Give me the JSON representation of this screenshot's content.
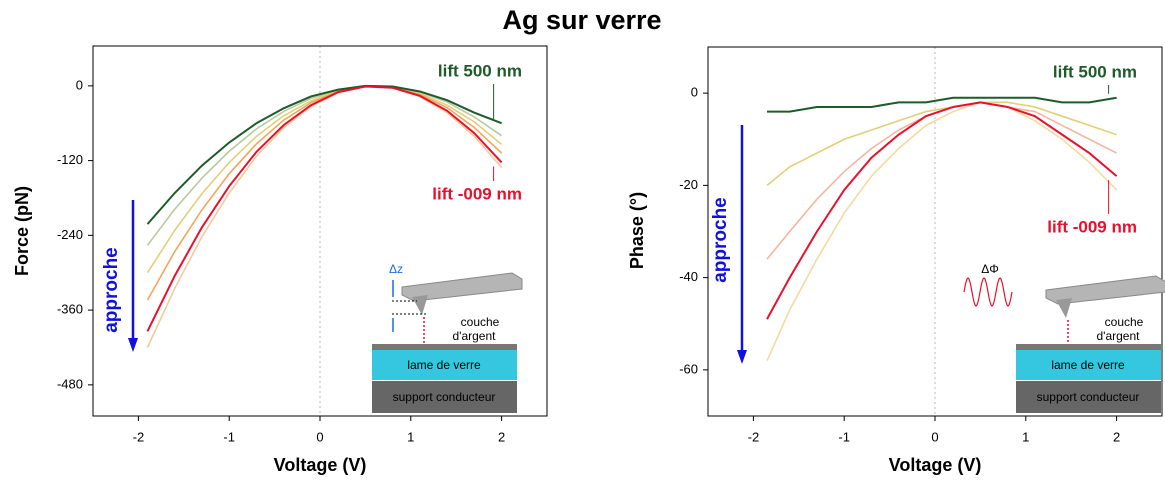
{
  "title": "Ag sur verre",
  "chart_data": [
    {
      "type": "line",
      "xlabel": "Voltage (V)",
      "ylabel": "Force (pN)",
      "xlim": [
        -2.5,
        2.5
      ],
      "xticks": [
        -2,
        -1,
        0,
        1,
        2
      ],
      "ylim": [
        -530,
        64
      ],
      "yticks": [
        0,
        -120,
        -240,
        -360,
        -480
      ],
      "x": [
        -1.9,
        -1.6,
        -1.3,
        -1.0,
        -0.7,
        -0.4,
        -0.1,
        0.2,
        0.5,
        0.8,
        1.1,
        1.4,
        1.7,
        2.0
      ],
      "series": [
        {
          "color": "#f5c99a",
          "values": [
            -420,
            -325,
            -242,
            -172,
            -113,
            -67,
            -33,
            -11,
            -1,
            -3,
            -17,
            -43,
            -81,
            -131
          ]
        },
        {
          "color": "#b8c9a0",
          "values": [
            -256,
            -198,
            -148,
            -105,
            -69,
            -41,
            -20,
            -7,
            0,
            -2,
            -10,
            -26,
            -50,
            -80
          ]
        },
        {
          "color": "#e0d07a",
          "values": [
            -300,
            -232,
            -173,
            -123,
            -81,
            -48,
            -24,
            -8,
            0,
            -2,
            -12,
            -31,
            -58,
            -94
          ]
        },
        {
          "color": "#f2a65a",
          "values": [
            -344,
            -266,
            -199,
            -141,
            -93,
            -55,
            -27,
            -9,
            -1,
            -2,
            -14,
            -35,
            -67,
            -108
          ]
        },
        {
          "name": "lift 500 nm",
          "color": "#1e5b2a",
          "values": [
            -222,
            -172,
            -128,
            -91,
            -60,
            -36,
            -17,
            -6,
            0,
            -1,
            -9,
            -23,
            -43,
            -60
          ]
        },
        {
          "name": "lift -009 nm",
          "color": "#e8112d",
          "values": [
            -394,
            -305,
            -227,
            -161,
            -106,
            -63,
            -31,
            -10,
            -1,
            -3,
            -16,
            -40,
            -76,
            -123
          ]
        }
      ],
      "arrow_label": "approche",
      "inset_dz": "Δz",
      "inset_layer1": "couche d'argent",
      "inset_layer2": "lame de verre",
      "inset_layer3": "support conducteur"
    },
    {
      "type": "line",
      "xlabel": "Voltage (V)",
      "ylabel": "Phase (°)",
      "xlim": [
        -2.5,
        2.5
      ],
      "xticks": [
        -2,
        -1,
        0,
        1,
        2
      ],
      "ylim": [
        -70,
        10
      ],
      "yticks": [
        0,
        -20,
        -40,
        -60
      ],
      "x": [
        -1.85,
        -1.6,
        -1.3,
        -1.0,
        -0.7,
        -0.4,
        -0.1,
        0.2,
        0.5,
        0.8,
        1.1,
        1.4,
        1.7,
        2.0
      ],
      "series": [
        {
          "color": "#f5d9a0",
          "values": [
            -58,
            -47,
            -36,
            -26,
            -18,
            -12,
            -7,
            -4,
            -2,
            -3,
            -6,
            -10,
            -15,
            -21
          ]
        },
        {
          "color": "#e0d07a",
          "values": [
            -20,
            -16,
            -13,
            -10,
            -8,
            -6,
            -4,
            -3,
            -2,
            -2,
            -3,
            -5,
            -7,
            -9
          ]
        },
        {
          "color": "#f4b6a0",
          "values": [
            -36,
            -30,
            -23,
            -17,
            -12,
            -8,
            -5,
            -3,
            -2,
            -3,
            -4,
            -7,
            -10,
            -13
          ]
        },
        {
          "name": "lift 500 nm",
          "color": "#1e5b2a",
          "values": [
            -4,
            -4,
            -3,
            -3,
            -3,
            -2,
            -2,
            -1,
            -1,
            -1,
            -1,
            -2,
            -2,
            -1
          ]
        },
        {
          "name": "lift -009 nm",
          "color": "#e8112d",
          "values": [
            -49,
            -40,
            -30,
            -21,
            -14,
            -9,
            -5,
            -3,
            -2,
            -3,
            -5,
            -9,
            -13,
            -18
          ]
        }
      ],
      "arrow_label": "approche",
      "inset_dphi": "ΔΦ",
      "inset_layer1": "couche d'argent",
      "inset_layer2": "lame de verre",
      "inset_layer3": "support conducteur"
    }
  ]
}
